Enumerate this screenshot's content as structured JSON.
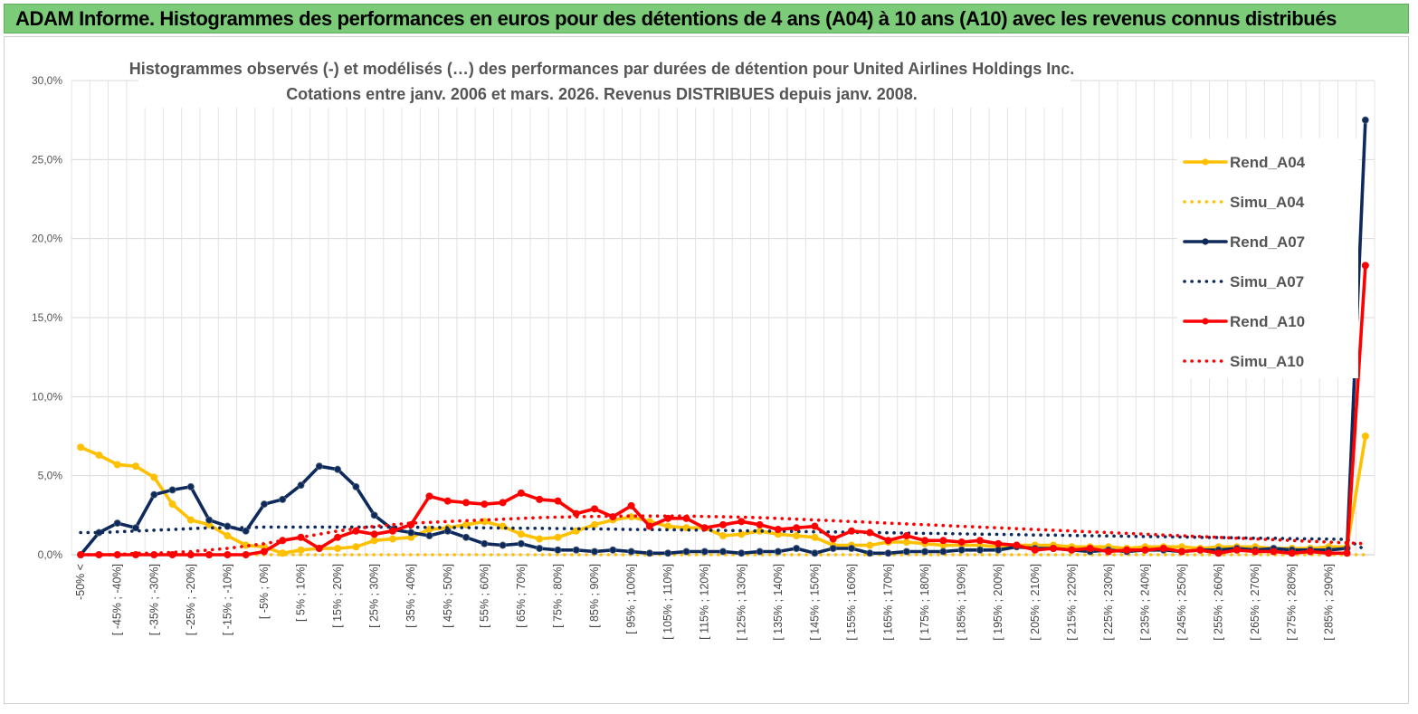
{
  "header": {
    "title": "ADAM Informe. Histogrammes des performances en euros pour des détentions de 4 ans (A04) à 10 ans (A10) avec les revenus connus distribués"
  },
  "colors": {
    "header_bg": "#7ccb78",
    "yellow": "#ffc000",
    "navy": "#0e2a5c",
    "red": "#ff0000"
  },
  "chart_data": {
    "type": "line",
    "title": [
      "Histogrammes observés (-) et modélisés (…) des performances par durées de détention pour United Airlines Holdings Inc.",
      "Cotations entre janv. 2006 et mars. 2026. Revenus DISTRIBUES depuis janv. 2008."
    ],
    "xlabel": "",
    "ylabel": "",
    "ylim": [
      0,
      30
    ],
    "y_ticks": [
      "0,0%",
      "5,0%",
      "10,0%",
      "15,0%",
      "20,0%",
      "25,0%",
      "30,0%"
    ],
    "x_tick_labels": [
      "-50% <",
      "[ -45% ; -40%]",
      "[ -35% ; -30%]",
      "[ -25% ; -20%]",
      "[ -15% ; -10%]",
      "[ -5% ; 0%]",
      "[ 5% ; 10%]",
      "[ 15% ; 20%]",
      "[ 25% ; 30%]",
      "[ 35% ; 40%]",
      "[ 45% ; 50%]",
      "[ 55% ; 60%]",
      "[ 65% ; 70%]",
      "[ 75% ; 80%]",
      "[ 85% ; 90%]",
      "[ 95% ; 100%]",
      "[ 105% ; 110%]",
      "[ 115% ; 120%]",
      "[ 125% ; 130%]",
      "[ 135% ; 140%]",
      "[ 145% ; 150%]",
      "[ 155% ; 160%]",
      "[ 165% ; 170%]",
      "[ 175% ; 180%]",
      "[ 185% ; 190%]",
      "[ 195% ; 200%]",
      "[ 205% ; 210%]",
      "[ 215% ; 220%]",
      "[ 225% ; 230%]",
      "[ 235% ; 240%]",
      "[ 245% ; 250%]",
      "[ 255% ; 260%]",
      "[ 265% ; 270%]",
      "[ 275% ; 280%]",
      "[ 285% ; 290%]"
    ],
    "x_tick_every": 2,
    "grid": true,
    "legend_position": "right",
    "series": [
      {
        "name": "Rend_A04",
        "color": "#ffc000",
        "style": "solid",
        "markers": true,
        "values": [
          6.8,
          6.3,
          5.7,
          5.6,
          4.9,
          3.2,
          2.2,
          1.9,
          1.2,
          0.6,
          0.5,
          0.1,
          0.3,
          0.4,
          0.4,
          0.5,
          0.9,
          1.0,
          1.1,
          1.6,
          1.7,
          1.9,
          2.1,
          1.8,
          1.3,
          1.0,
          1.1,
          1.5,
          1.9,
          2.2,
          2.4,
          2.1,
          1.8,
          1.7,
          1.7,
          1.2,
          1.3,
          1.5,
          1.3,
          1.2,
          1.1,
          0.6,
          0.6,
          0.6,
          0.8,
          0.8,
          0.7,
          0.6,
          0.6,
          0.6,
          0.5,
          0.6,
          0.6,
          0.6,
          0.5,
          0.5,
          0.5,
          0.4,
          0.5,
          0.5,
          0.5,
          0.4,
          0.5,
          0.5,
          0.5,
          0.4,
          0.4,
          0.4,
          0.5,
          0.5,
          7.5
        ]
      },
      {
        "name": "Simu_A04",
        "color": "#ffc000",
        "style": "dotted",
        "markers": false,
        "values": [
          0,
          0,
          0,
          0,
          0,
          0,
          0,
          0,
          0,
          0,
          0,
          0,
          0,
          0,
          0,
          0,
          0,
          0,
          0,
          0,
          0,
          0,
          0,
          0,
          0,
          0,
          0,
          0,
          0,
          0,
          0,
          0,
          0,
          0,
          0,
          0,
          0,
          0,
          0,
          0,
          0,
          0,
          0,
          0,
          0,
          0,
          0,
          0,
          0,
          0,
          0,
          0,
          0,
          0,
          0,
          0,
          0,
          0,
          0,
          0,
          0,
          0,
          0,
          0,
          0,
          0,
          0,
          0,
          0,
          0,
          0
        ]
      },
      {
        "name": "Rend_A07",
        "color": "#0e2a5c",
        "style": "solid",
        "markers": true,
        "values": [
          0.0,
          1.4,
          2.0,
          1.7,
          3.8,
          4.1,
          4.3,
          2.2,
          1.8,
          1.5,
          3.2,
          3.5,
          4.4,
          5.6,
          5.4,
          4.3,
          2.5,
          1.6,
          1.4,
          1.2,
          1.5,
          1.1,
          0.7,
          0.6,
          0.7,
          0.4,
          0.3,
          0.3,
          0.2,
          0.3,
          0.2,
          0.1,
          0.1,
          0.2,
          0.2,
          0.2,
          0.1,
          0.2,
          0.2,
          0.4,
          0.1,
          0.4,
          0.4,
          0.1,
          0.1,
          0.2,
          0.2,
          0.2,
          0.3,
          0.3,
          0.3,
          0.5,
          0.4,
          0.4,
          0.3,
          0.2,
          0.3,
          0.2,
          0.3,
          0.3,
          0.2,
          0.3,
          0.3,
          0.4,
          0.3,
          0.4,
          0.3,
          0.3,
          0.3,
          0.4,
          27.5
        ]
      },
      {
        "name": "Simu_A07",
        "color": "#0e2a5c",
        "style": "dotted",
        "markers": false,
        "values": [
          1.4,
          1.4,
          1.45,
          1.5,
          1.55,
          1.6,
          1.65,
          1.7,
          1.7,
          1.72,
          1.75,
          1.75,
          1.75,
          1.75,
          1.75,
          1.75,
          1.75,
          1.75,
          1.74,
          1.73,
          1.72,
          1.71,
          1.7,
          1.69,
          1.68,
          1.67,
          1.66,
          1.65,
          1.63,
          1.62,
          1.6,
          1.59,
          1.58,
          1.57,
          1.55,
          1.54,
          1.52,
          1.5,
          1.49,
          1.47,
          1.45,
          1.44,
          1.42,
          1.4,
          1.39,
          1.37,
          1.35,
          1.34,
          1.32,
          1.3,
          1.29,
          1.27,
          1.25,
          1.24,
          1.22,
          1.2,
          1.19,
          1.17,
          1.15,
          1.14,
          1.12,
          1.1,
          1.09,
          1.07,
          1.05,
          1.04,
          1.02,
          1.0,
          0.99,
          0.97,
          0.3
        ]
      },
      {
        "name": "Rend_A10",
        "color": "#ff0000",
        "style": "solid",
        "markers": true,
        "values": [
          0.0,
          0.0,
          0.0,
          0.0,
          0.0,
          0.0,
          0.0,
          0.0,
          0.0,
          0.0,
          0.2,
          0.9,
          1.1,
          0.4,
          1.1,
          1.5,
          1.3,
          1.5,
          1.9,
          3.7,
          3.4,
          3.3,
          3.2,
          3.3,
          3.9,
          3.5,
          3.4,
          2.6,
          2.9,
          2.4,
          3.1,
          1.8,
          2.3,
          2.3,
          1.7,
          1.9,
          2.1,
          1.9,
          1.6,
          1.7,
          1.8,
          1.0,
          1.5,
          1.4,
          0.9,
          1.2,
          0.9,
          0.9,
          0.8,
          0.9,
          0.7,
          0.6,
          0.3,
          0.4,
          0.3,
          0.4,
          0.2,
          0.3,
          0.3,
          0.4,
          0.2,
          0.3,
          0.1,
          0.3,
          0.2,
          0.2,
          0.1,
          0.2,
          0.1,
          0.1,
          18.3
        ]
      },
      {
        "name": "Simu_A10",
        "color": "#ff0000",
        "style": "dotted",
        "markers": false,
        "values": [
          0.0,
          0.0,
          0.0,
          0.1,
          0.1,
          0.15,
          0.2,
          0.3,
          0.4,
          0.55,
          0.7,
          0.9,
          1.1,
          1.3,
          1.5,
          1.65,
          1.8,
          1.9,
          2.0,
          2.05,
          2.1,
          2.15,
          2.2,
          2.25,
          2.3,
          2.35,
          2.38,
          2.4,
          2.42,
          2.44,
          2.45,
          2.45,
          2.45,
          2.45,
          2.42,
          2.4,
          2.38,
          2.35,
          2.3,
          2.25,
          2.2,
          2.15,
          2.1,
          2.05,
          2.0,
          1.95,
          1.9,
          1.85,
          1.8,
          1.75,
          1.7,
          1.65,
          1.6,
          1.55,
          1.5,
          1.45,
          1.4,
          1.35,
          1.3,
          1.25,
          1.2,
          1.15,
          1.1,
          1.05,
          1.0,
          0.95,
          0.9,
          0.85,
          0.8,
          0.75,
          0.7
        ]
      }
    ]
  }
}
